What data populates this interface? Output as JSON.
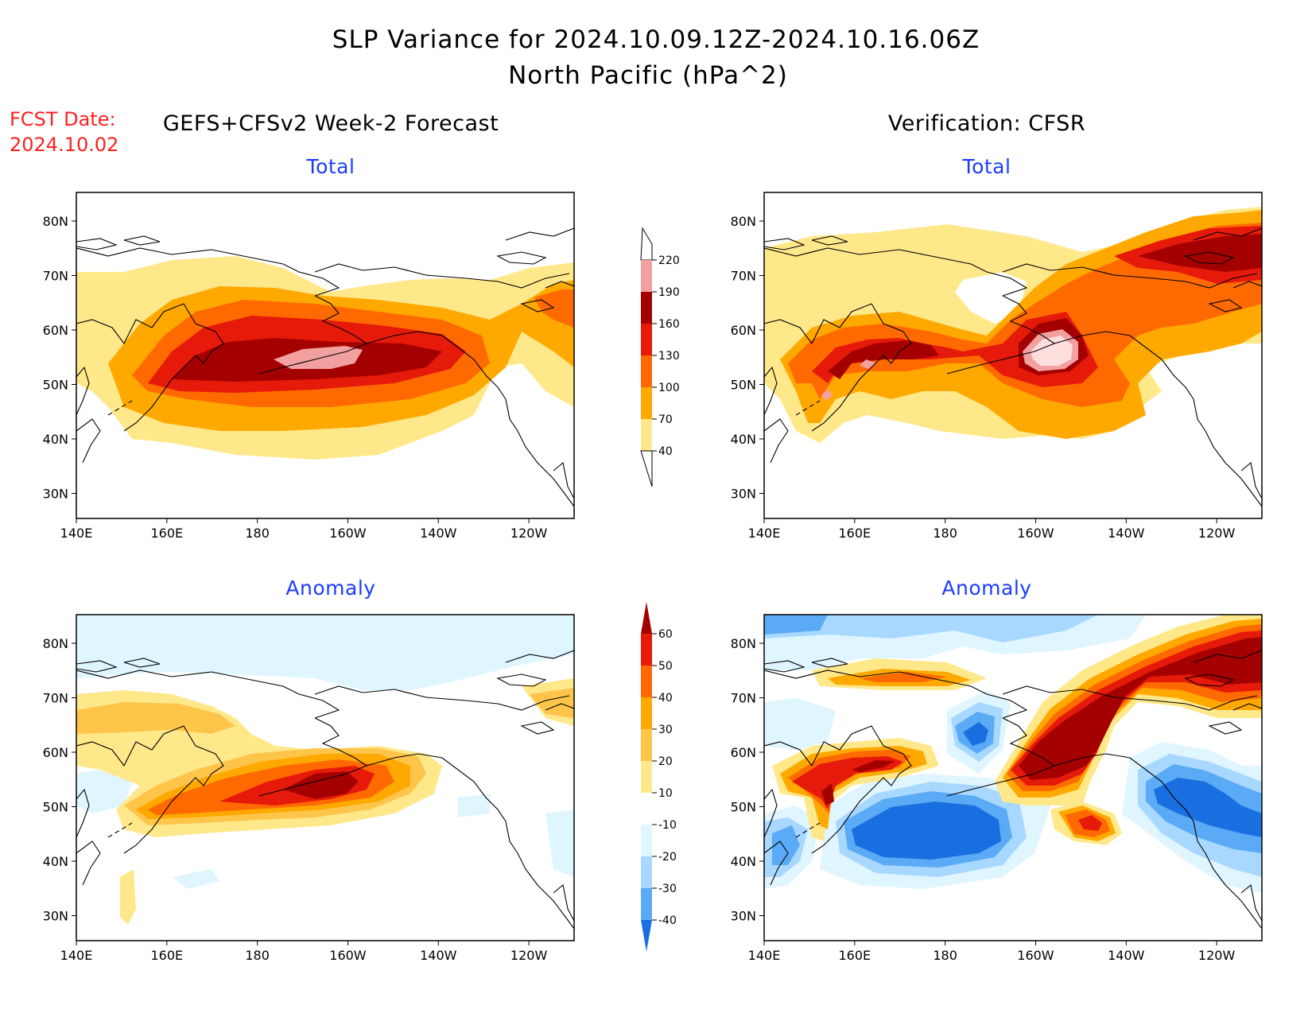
{
  "title": {
    "line1": "SLP Variance for 2024.10.09.12Z-2024.10.16.06Z",
    "line2": "North Pacific (hPa^2)"
  },
  "fcst_date": {
    "label": "FCST Date:",
    "value": "2024.10.02"
  },
  "columns": {
    "left": "GEFS+CFSv2 Week-2 Forecast",
    "right": "Verification: CFSR"
  },
  "panels": {
    "forecast_total": "Total",
    "verification_total": "Total",
    "forecast_anomaly": "Anomaly",
    "verification_anomaly": "Anomaly"
  },
  "axes": {
    "x_ticks": [
      "140E",
      "160E",
      "180",
      "160W",
      "140W",
      "120W"
    ],
    "y_ticks": [
      "80N",
      "70N",
      "60N",
      "50N",
      "40N",
      "30N"
    ]
  },
  "colorbars": {
    "total": {
      "levels": [
        "40",
        "70",
        "100",
        "130",
        "160",
        "190",
        "220"
      ],
      "colors": [
        "#ffe88a",
        "#ffa900",
        "#ff6a00",
        "#e61a0a",
        "#a50000",
        "#f2a0a0",
        "#ffdede"
      ]
    },
    "anomaly": {
      "levels": [
        "60",
        "50",
        "40",
        "30",
        "20",
        "10",
        "-10",
        "-20",
        "-30",
        "-40"
      ],
      "colors_high_to_low": [
        "#a50000",
        "#e61a0a",
        "#ff6a00",
        "#ffa900",
        "#ffc44a",
        "#ffe88a",
        "#ffffff",
        "#dff5ff",
        "#a8d8ff",
        "#5aaaf5",
        "#1a6fe0"
      ]
    }
  },
  "colors": {
    "title_text": "#000000",
    "fcst_date_text": "#ff2020",
    "panel_subtitle": "#1a3cff"
  }
}
